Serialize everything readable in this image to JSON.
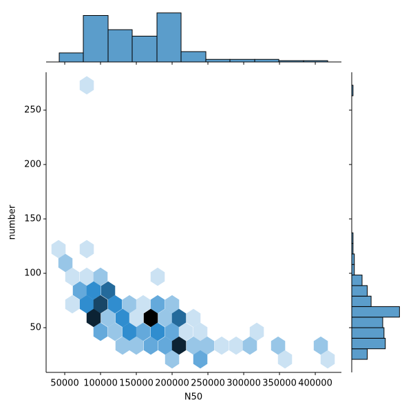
{
  "chart_data": {
    "type": "hexbin",
    "x_label": "N50",
    "y_label": "number",
    "xlim": [
      24000,
      436500
    ],
    "ylim": [
      8.9,
      284.8
    ],
    "xticks": [
      50000,
      100000,
      150000,
      200000,
      250000,
      300000,
      350000,
      400000
    ],
    "yticks": [
      50,
      100,
      150,
      200,
      250
    ],
    "hue": 205,
    "cells": {
      "x": [
        80769,
        41346,
        80769,
        50962,
        60577,
        80769,
        100000,
        179808,
        71154,
        90385,
        110577,
        60577,
        80769,
        100000,
        120192,
        140385,
        159615,
        179808,
        200000,
        90385,
        110577,
        130769,
        150000,
        170192,
        190385,
        209615,
        229808,
        100000,
        120192,
        140385,
        159615,
        179808,
        200000,
        219231,
        239423,
        318269,
        130769,
        150000,
        170192,
        190385,
        209615,
        229808,
        249038,
        269231,
        289423,
        308654,
        348077,
        407692,
        200000,
        239423,
        357692,
        417308
      ],
      "y": [
        272.8,
        122.2,
        122.2,
        109.5,
        96.8,
        96.8,
        96.8,
        96.8,
        84.2,
        84.2,
        84.2,
        71.5,
        71.5,
        71.5,
        71.5,
        71.5,
        71.5,
        71.5,
        71.5,
        58.9,
        58.9,
        58.9,
        58.9,
        58.9,
        58.9,
        58.9,
        58.9,
        46.2,
        46.2,
        46.2,
        46.2,
        46.2,
        46.2,
        46.2,
        46.2,
        46.2,
        33.5,
        33.5,
        33.5,
        33.5,
        33.5,
        33.5,
        33.5,
        33.5,
        33.5,
        33.5,
        33.5,
        33.5,
        20.9,
        20.9,
        20.9,
        20.9
      ],
      "counts": [
        1,
        1,
        1,
        2,
        1,
        1,
        2,
        1,
        3,
        4,
        5,
        1,
        4,
        6,
        4,
        2,
        1,
        3,
        2,
        7,
        2,
        4,
        1,
        8,
        2,
        5,
        1,
        3,
        2,
        4,
        3,
        4,
        3,
        1,
        1,
        1,
        2,
        2,
        3,
        3,
        7,
        2,
        2,
        1,
        1,
        2,
        2,
        2,
        2,
        3,
        1,
        1
      ]
    },
    "hist_color": "#5b9dcb",
    "marginal_x": {
      "lim": [
        0,
        40
      ],
      "bins": [
        42308,
        75962,
        110577,
        144231,
        178846,
        212500,
        247115,
        280769,
        315385,
        349038,
        383654,
        417308
      ],
      "counts": [
        7,
        36,
        25,
        20,
        38,
        8,
        2,
        2,
        2,
        1,
        1
      ]
    },
    "marginal_y": {
      "lim": [
        0,
        40
      ],
      "bins": [
        20.9,
        30.6,
        40.3,
        50.0,
        59.7,
        69.4,
        79.0,
        88.7,
        98.4,
        108.1,
        117.8,
        127.5,
        137.2,
        146.9,
        156.6,
        166.3,
        176.0,
        185.6,
        195.3,
        205.0,
        214.7,
        224.4,
        234.1,
        243.8,
        253.5,
        263.2,
        272.9
      ],
      "counts": [
        12,
        26,
        25,
        24,
        37,
        15,
        12,
        8,
        2,
        2,
        1,
        1,
        0,
        0,
        0,
        0,
        0,
        0,
        0,
        0,
        0,
        0,
        0,
        0,
        0,
        1
      ]
    }
  }
}
